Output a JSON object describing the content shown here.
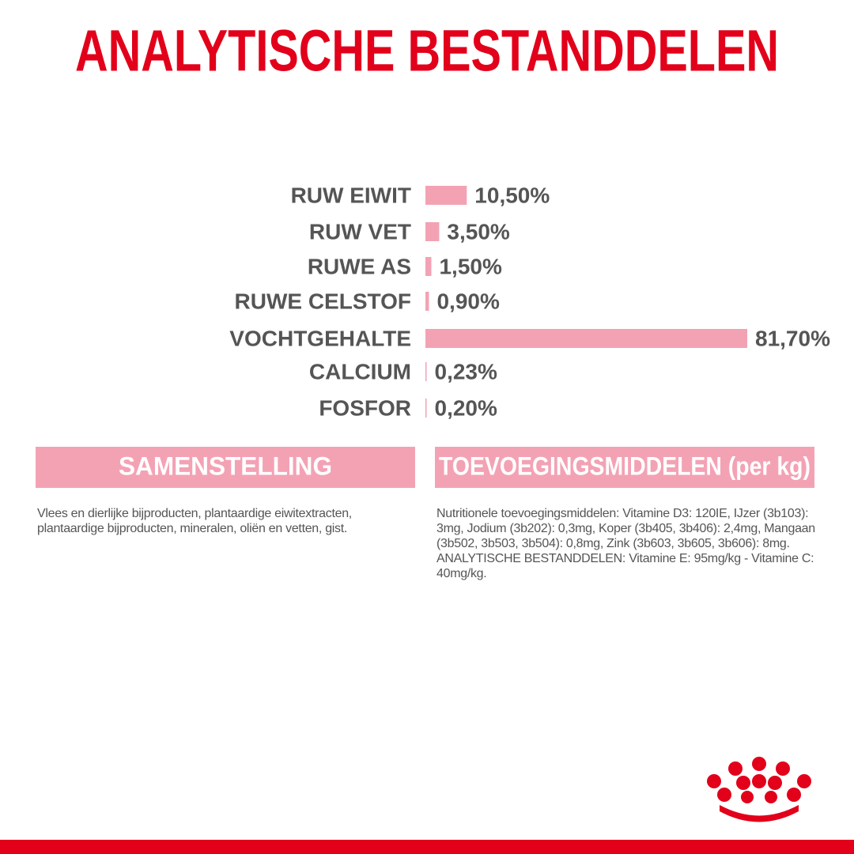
{
  "chart_data": {
    "type": "hbar",
    "title": "ANALYTISCHE BESTANDDELEN",
    "categories": [
      "RUW EIWIT",
      "RUW VET",
      "RUWE AS",
      "RUWE CELSTOF",
      "VOCHTGEHALTE",
      "CALCIUM",
      "FOSFOR"
    ],
    "values": [
      10.5,
      3.5,
      1.5,
      0.9,
      81.7,
      0.23,
      0.2
    ],
    "value_labels": [
      "10,50%",
      "3,50%",
      "1,50%",
      "0,90%",
      "81,70%",
      "0,23%",
      "0,20%"
    ],
    "color": "#f3a2b4"
  },
  "composition": {
    "heading": "SAMENSTELLING",
    "text": "Vlees en dierlijke bijproducten, plantaardige eiwitextracten, plantaardige bijproducten, mineralen, oliën en vetten, gist."
  },
  "additives": {
    "heading": "TOEVOEGINGSMIDDELEN (per kg)",
    "paragraphs": [
      "Nutritionele toevoegingsmiddelen: Vitamine D3: 120IE, IJzer (3b103): 3mg, Jodium (3b202): 0,3mg, Koper (3b405, 3b406): 2,4mg, Mangaan (3b502, 3b503, 3b504): 0,8mg, Zink (3b603, 3b605, 3b606): 8mg.",
      "ANALYTISCHE BESTANDDELEN: Vitamine E: 95mg/kg - Vitamine C: 40mg/kg."
    ]
  }
}
